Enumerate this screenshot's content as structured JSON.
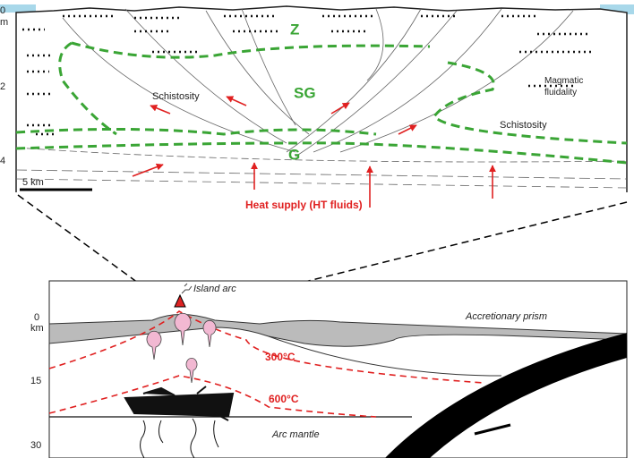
{
  "top_section": {
    "depth_ticks": [
      0,
      2,
      4
    ],
    "depth_unit": "m",
    "zones": [
      "Z",
      "SG",
      "G"
    ],
    "schistosity_labels": [
      "Schistosity",
      "Schistosity"
    ],
    "fluidality_label": "Magmatic fluidality",
    "scale_bar": "5 km",
    "heat_supply": "Heat supply (HT fluids)"
  },
  "bottom_section": {
    "depth_ticks": [
      0,
      15,
      30
    ],
    "depth_unit": "km",
    "island_arc": "Island arc",
    "accretionary_prism": "Accretionary prism",
    "isotherms": [
      "300°C",
      "600°C"
    ],
    "arc_mantle": "Arc mantle"
  }
}
